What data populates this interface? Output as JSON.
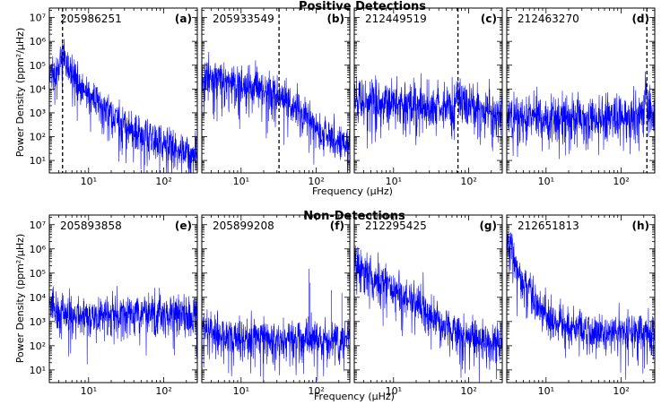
{
  "figure": {
    "xlabel": "Frequency (μHz)",
    "ylabel": "Power Density (ppm²/μHz)"
  },
  "rows": [
    {
      "title": "Positive Detections"
    },
    {
      "title": "Non-Detections"
    }
  ],
  "colors": {
    "psd": "#0000ff",
    "marker": "#000000",
    "frame": "#000000"
  },
  "chart_data": [
    {
      "type": "line",
      "panel": "a",
      "label": "(a)",
      "id": "205986251",
      "xscale": "log",
      "yscale": "log",
      "xlim": [
        3,
        280
      ],
      "ylim": [
        3,
        25000000.0
      ],
      "x_ticks": [
        10,
        100
      ],
      "y_ticks": [
        10,
        100,
        1000,
        10000,
        100000,
        1000000,
        10000000
      ],
      "marker_x": 4.5,
      "series": [
        {
          "x": [
            3,
            4,
            4.5,
            5,
            6,
            8,
            10,
            15,
            20,
            30,
            50,
            100,
            200,
            280
          ],
          "y": [
            30000,
            100000,
            300000,
            150000,
            50000,
            15000,
            8000,
            2000,
            800,
            300,
            120,
            50,
            25,
            20
          ],
          "scatter_dex": 0.7
        }
      ]
    },
    {
      "type": "line",
      "panel": "b",
      "label": "(b)",
      "id": "205933549",
      "xscale": "log",
      "yscale": "log",
      "xlim": [
        3,
        280
      ],
      "ylim": [
        3,
        25000000.0
      ],
      "x_ticks": [
        10,
        100
      ],
      "y_ticks": [
        10,
        100,
        1000,
        10000,
        100000,
        1000000,
        10000000
      ],
      "marker_x": 32,
      "series": [
        {
          "x": [
            3,
            5,
            10,
            20,
            30,
            50,
            100,
            200,
            280
          ],
          "y": [
            30000,
            25000,
            18000,
            12000,
            6000,
            2000,
            300,
            60,
            40
          ],
          "scatter_dex": 0.7
        }
      ]
    },
    {
      "type": "line",
      "panel": "c",
      "label": "(c)",
      "id": "212449519",
      "xscale": "log",
      "yscale": "log",
      "xlim": [
        3,
        280
      ],
      "ylim": [
        3,
        25000000.0
      ],
      "x_ticks": [
        10,
        100
      ],
      "y_ticks": [
        10,
        100,
        1000,
        10000,
        100000,
        1000000,
        10000000
      ],
      "marker_x": 72,
      "series": [
        {
          "x": [
            3,
            10,
            30,
            60,
            72,
            90,
            150,
            280
          ],
          "y": [
            3000,
            2500,
            2000,
            2500,
            8000,
            2500,
            1500,
            1200
          ],
          "scatter_dex": 0.8
        }
      ]
    },
    {
      "type": "line",
      "panel": "d",
      "label": "(d)",
      "id": "212463270",
      "xscale": "log",
      "yscale": "log",
      "xlim": [
        3,
        280
      ],
      "ylim": [
        3,
        25000000.0
      ],
      "x_ticks": [
        10,
        100
      ],
      "y_ticks": [
        10,
        100,
        1000,
        10000,
        100000,
        1000000,
        10000000
      ],
      "marker_x": 220,
      "series": [
        {
          "x": [
            3,
            10,
            50,
            150,
            200,
            220,
            250,
            280
          ],
          "y": [
            800,
            700,
            700,
            800,
            1500,
            4000,
            1500,
            900
          ],
          "scatter_dex": 0.8
        }
      ]
    },
    {
      "type": "line",
      "panel": "e",
      "label": "(e)",
      "id": "205893858",
      "xscale": "log",
      "yscale": "log",
      "xlim": [
        3,
        280
      ],
      "ylim": [
        3,
        25000000.0
      ],
      "x_ticks": [
        10,
        100
      ],
      "y_ticks": [
        10,
        100,
        1000,
        10000,
        100000,
        1000000,
        10000000
      ],
      "marker_x": null,
      "series": [
        {
          "x": [
            3,
            5,
            10,
            20,
            50,
            100,
            280
          ],
          "y": [
            5000,
            2500,
            1500,
            2000,
            2200,
            2200,
            2000
          ],
          "scatter_dex": 0.8
        }
      ]
    },
    {
      "type": "line",
      "panel": "f",
      "label": "(f)",
      "id": "205899208",
      "xscale": "log",
      "yscale": "log",
      "xlim": [
        3,
        280
      ],
      "ylim": [
        3,
        25000000.0
      ],
      "x_ticks": [
        10,
        100
      ],
      "y_ticks": [
        10,
        100,
        1000,
        10000,
        100000,
        1000000,
        10000000
      ],
      "marker_x": null,
      "spikes": [
        {
          "x": 80,
          "y": 150000
        },
        {
          "x": 83,
          "y": 40000
        },
        {
          "x": 160,
          "y": 20000
        },
        {
          "x": 220,
          "y": 15000
        }
      ],
      "series": [
        {
          "x": [
            3,
            5,
            10,
            20,
            50,
            100,
            280
          ],
          "y": [
            600,
            350,
            250,
            200,
            200,
            200,
            180
          ],
          "scatter_dex": 0.7
        }
      ]
    },
    {
      "type": "line",
      "panel": "g",
      "label": "(g)",
      "id": "212295425",
      "xscale": "log",
      "yscale": "log",
      "xlim": [
        3,
        280
      ],
      "ylim": [
        3,
        25000000.0
      ],
      "x_ticks": [
        10,
        100
      ],
      "y_ticks": [
        10,
        100,
        1000,
        10000,
        100000,
        1000000,
        10000000
      ],
      "marker_x": null,
      "series": [
        {
          "x": [
            3,
            4,
            6,
            10,
            20,
            40,
            80,
            150,
            280
          ],
          "y": [
            300000,
            150000,
            70000,
            25000,
            6000,
            1200,
            300,
            150,
            120
          ],
          "scatter_dex": 0.7
        }
      ]
    },
    {
      "type": "line",
      "panel": "h",
      "label": "(h)",
      "id": "212651813",
      "xscale": "log",
      "yscale": "log",
      "xlim": [
        3,
        280
      ],
      "ylim": [
        3,
        25000000.0
      ],
      "x_ticks": [
        10,
        100
      ],
      "y_ticks": [
        10,
        100,
        1000,
        10000,
        100000,
        1000000,
        10000000
      ],
      "marker_x": null,
      "series": [
        {
          "x": [
            3,
            3.3,
            3.6,
            4,
            5,
            7,
            10,
            20,
            50,
            100,
            280
          ],
          "y": [
            1000000,
            2000000,
            500000,
            150000,
            40000,
            8000,
            2000,
            600,
            400,
            400,
            400
          ],
          "scatter_dex": 0.7
        }
      ]
    }
  ]
}
